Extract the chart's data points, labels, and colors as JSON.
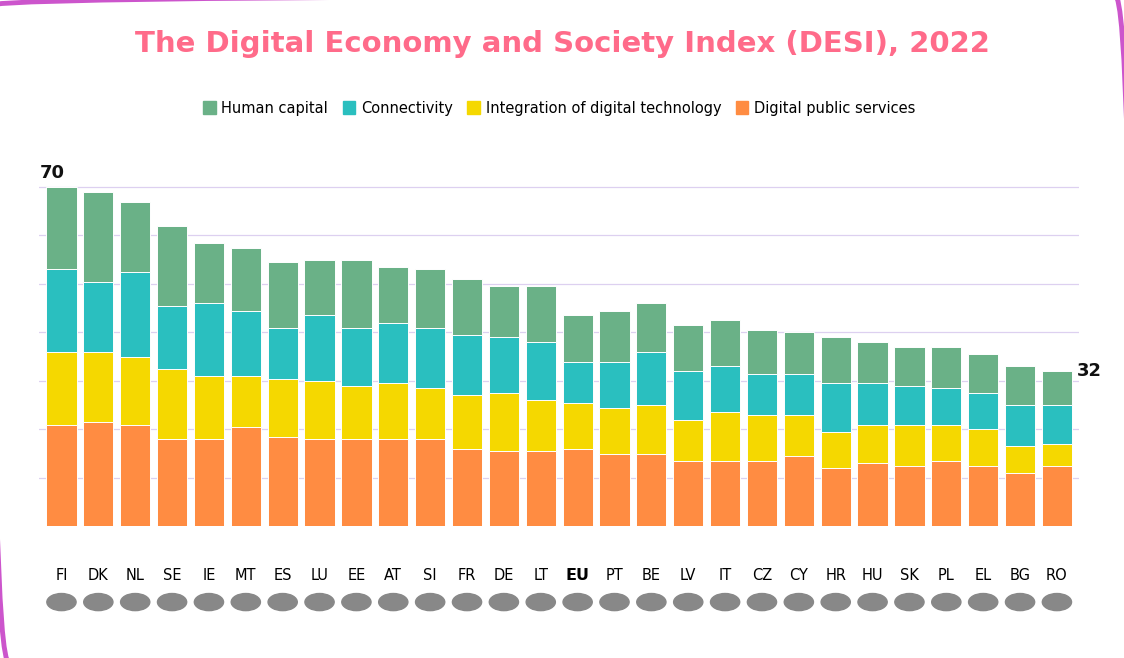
{
  "title": "The Digital Economy and Society Index (DESI), 2022",
  "title_color": "#ff6b8a",
  "background_color": "#ffffff",
  "border_color": "#cc55cc",
  "categories": [
    "FI",
    "DK",
    "NL",
    "SE",
    "IE",
    "MT",
    "ES",
    "LU",
    "EE",
    "AT",
    "SI",
    "FR",
    "DE",
    "LT",
    "EU",
    "PT",
    "BE",
    "LV",
    "IT",
    "CZ",
    "CY",
    "HR",
    "HU",
    "SK",
    "PL",
    "EL",
    "BG",
    "RO"
  ],
  "eu_index": 14,
  "legend_labels": [
    "Human capital",
    "Connectivity",
    "Integration of digital technology",
    "Digital public services"
  ],
  "colors": [
    "#6ab187",
    "#2abfbf",
    "#f5d800",
    "#ff8c42"
  ],
  "ylim_max": 76,
  "grid_color": "#ddd0f0",
  "bar_width": 0.82,
  "human_capital": [
    17.0,
    18.5,
    14.5,
    16.5,
    12.5,
    13.0,
    13.5,
    11.5,
    14.0,
    11.5,
    12.0,
    11.5,
    10.5,
    11.5,
    9.5,
    10.5,
    10.0,
    9.5,
    9.5,
    9.0,
    8.5,
    9.5,
    8.5,
    8.0,
    8.5,
    8.0,
    8.0,
    7.0
  ],
  "connectivity": [
    17.0,
    14.5,
    17.5,
    13.0,
    15.0,
    13.5,
    10.5,
    13.5,
    12.0,
    12.5,
    12.5,
    12.5,
    11.5,
    12.0,
    8.5,
    9.5,
    11.0,
    10.0,
    9.5,
    8.5,
    8.5,
    10.0,
    8.5,
    8.0,
    7.5,
    7.5,
    8.5,
    8.0
  ],
  "integration": [
    15.0,
    14.5,
    14.0,
    14.5,
    13.0,
    10.5,
    12.0,
    12.0,
    11.0,
    11.5,
    10.5,
    11.0,
    12.0,
    10.5,
    9.5,
    9.5,
    10.0,
    8.5,
    10.0,
    9.5,
    8.5,
    7.5,
    8.0,
    8.5,
    7.5,
    7.5,
    5.5,
    4.5
  ],
  "public_services": [
    21.0,
    21.5,
    21.0,
    18.0,
    18.0,
    20.5,
    18.5,
    18.0,
    18.0,
    18.0,
    18.0,
    16.0,
    15.5,
    15.5,
    16.0,
    15.0,
    15.0,
    13.5,
    13.5,
    13.5,
    14.5,
    12.0,
    13.0,
    12.5,
    13.5,
    12.5,
    11.0,
    12.5
  ]
}
